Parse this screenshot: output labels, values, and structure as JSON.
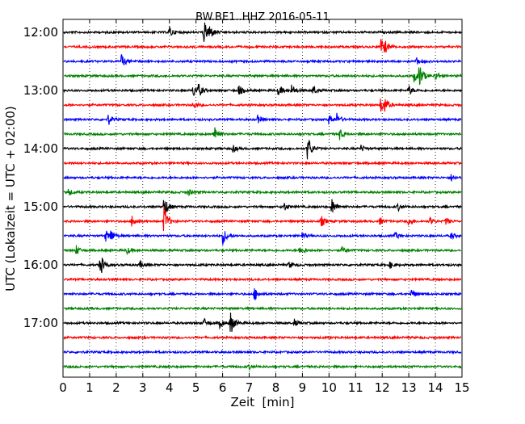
{
  "chart_data": {
    "type": "line",
    "title": "BW.BE1..HHZ 2016-05-11",
    "xlabel": "Zeit  [min]",
    "ylabel": "UTC (Lokalzeit = UTC + 02:00)",
    "xlim": [
      0,
      15
    ],
    "x_ticks": [
      "0",
      "1",
      "2",
      "3",
      "4",
      "5",
      "6",
      "7",
      "8",
      "9",
      "10",
      "11",
      "12",
      "13",
      "14",
      "15"
    ],
    "y_tick_labels": [
      "12:00",
      "13:00",
      "14:00",
      "15:00",
      "16:00",
      "17:00"
    ],
    "grid": "vertical dotted",
    "colors": [
      "#000000",
      "#ff0000",
      "#0000ff",
      "#008000"
    ],
    "traces": [
      {
        "start": "12:00",
        "color": "#000000",
        "events": [
          [
            4.0,
            0.5
          ],
          [
            5.3,
            1.0
          ],
          [
            5.5,
            0.6
          ]
        ]
      },
      {
        "start": "12:15",
        "color": "#ff0000",
        "events": [
          [
            11.95,
            0.7
          ],
          [
            12.1,
            0.4
          ]
        ]
      },
      {
        "start": "12:30",
        "color": "#0000ff",
        "events": [
          [
            2.2,
            0.6
          ],
          [
            13.3,
            0.3
          ]
        ]
      },
      {
        "start": "12:45",
        "color": "#008000",
        "events": [
          [
            13.4,
            1.1
          ],
          [
            13.2,
            0.5
          ],
          [
            14.0,
            0.4
          ]
        ]
      },
      {
        "start": "13:00",
        "color": "#000000",
        "events": [
          [
            4.9,
            0.6
          ],
          [
            5.1,
            0.5
          ],
          [
            6.6,
            0.5
          ],
          [
            8.1,
            0.5
          ],
          [
            8.6,
            0.5
          ],
          [
            9.4,
            0.4
          ],
          [
            13.0,
            0.4
          ]
        ]
      },
      {
        "start": "13:15",
        "color": "#ff0000",
        "events": [
          [
            4.9,
            0.3
          ],
          [
            11.95,
            0.7
          ],
          [
            12.1,
            0.5
          ]
        ]
      },
      {
        "start": "13:30",
        "color": "#0000ff",
        "events": [
          [
            1.7,
            0.5
          ],
          [
            7.3,
            0.4
          ],
          [
            10.0,
            0.5
          ],
          [
            10.3,
            0.5
          ]
        ]
      },
      {
        "start": "13:45",
        "color": "#008000",
        "events": [
          [
            5.7,
            0.9
          ],
          [
            10.4,
            0.5
          ]
        ]
      },
      {
        "start": "14:00",
        "color": "#000000",
        "events": [
          [
            9.2,
            1.2
          ],
          [
            6.4,
            0.3
          ],
          [
            11.2,
            0.3
          ]
        ]
      },
      {
        "start": "14:15",
        "color": "#ff0000",
        "events": []
      },
      {
        "start": "14:30",
        "color": "#0000ff",
        "events": [
          [
            14.6,
            0.3
          ]
        ]
      },
      {
        "start": "14:45",
        "color": "#008000",
        "events": [
          [
            0.2,
            0.3
          ],
          [
            4.7,
            0.3
          ]
        ]
      },
      {
        "start": "15:00",
        "color": "#000000",
        "events": [
          [
            3.8,
            1.0
          ],
          [
            8.3,
            0.4
          ],
          [
            10.1,
            0.8
          ],
          [
            12.6,
            0.3
          ]
        ]
      },
      {
        "start": "15:15",
        "color": "#ff0000",
        "events": [
          [
            2.6,
            0.6
          ],
          [
            3.8,
            1.3
          ],
          [
            9.7,
            0.5
          ],
          [
            11.9,
            0.3
          ],
          [
            13.0,
            0.4
          ],
          [
            13.8,
            0.3
          ],
          [
            14.4,
            0.3
          ]
        ]
      },
      {
        "start": "15:30",
        "color": "#0000ff",
        "events": [
          [
            1.6,
            0.5
          ],
          [
            1.8,
            0.5
          ],
          [
            6.0,
            0.8
          ],
          [
            9.0,
            0.3
          ],
          [
            12.5,
            0.3
          ],
          [
            14.6,
            0.3
          ]
        ]
      },
      {
        "start": "15:45",
        "color": "#008000",
        "events": [
          [
            0.5,
            0.4
          ],
          [
            2.4,
            0.3
          ],
          [
            8.9,
            0.4
          ],
          [
            10.5,
            0.3
          ]
        ]
      },
      {
        "start": "16:00",
        "color": "#000000",
        "events": [
          [
            1.4,
            1.0
          ],
          [
            2.9,
            0.3
          ],
          [
            8.5,
            0.3
          ],
          [
            12.3,
            0.3
          ]
        ]
      },
      {
        "start": "16:15",
        "color": "#ff0000",
        "events": []
      },
      {
        "start": "16:30",
        "color": "#0000ff",
        "events": [
          [
            7.2,
            0.6
          ],
          [
            13.1,
            0.4
          ]
        ]
      },
      {
        "start": "16:45",
        "color": "#008000",
        "events": []
      },
      {
        "start": "17:00",
        "color": "#000000",
        "events": [
          [
            5.3,
            0.4
          ],
          [
            5.9,
            0.4
          ],
          [
            6.3,
            1.0
          ],
          [
            8.7,
            0.3
          ]
        ]
      },
      {
        "start": "17:15",
        "color": "#ff0000",
        "events": []
      },
      {
        "start": "17:30",
        "color": "#0000ff",
        "events": []
      },
      {
        "start": "17:45",
        "color": "#008000",
        "events": [
          [
            7.0,
            0.2
          ]
        ]
      }
    ]
  }
}
